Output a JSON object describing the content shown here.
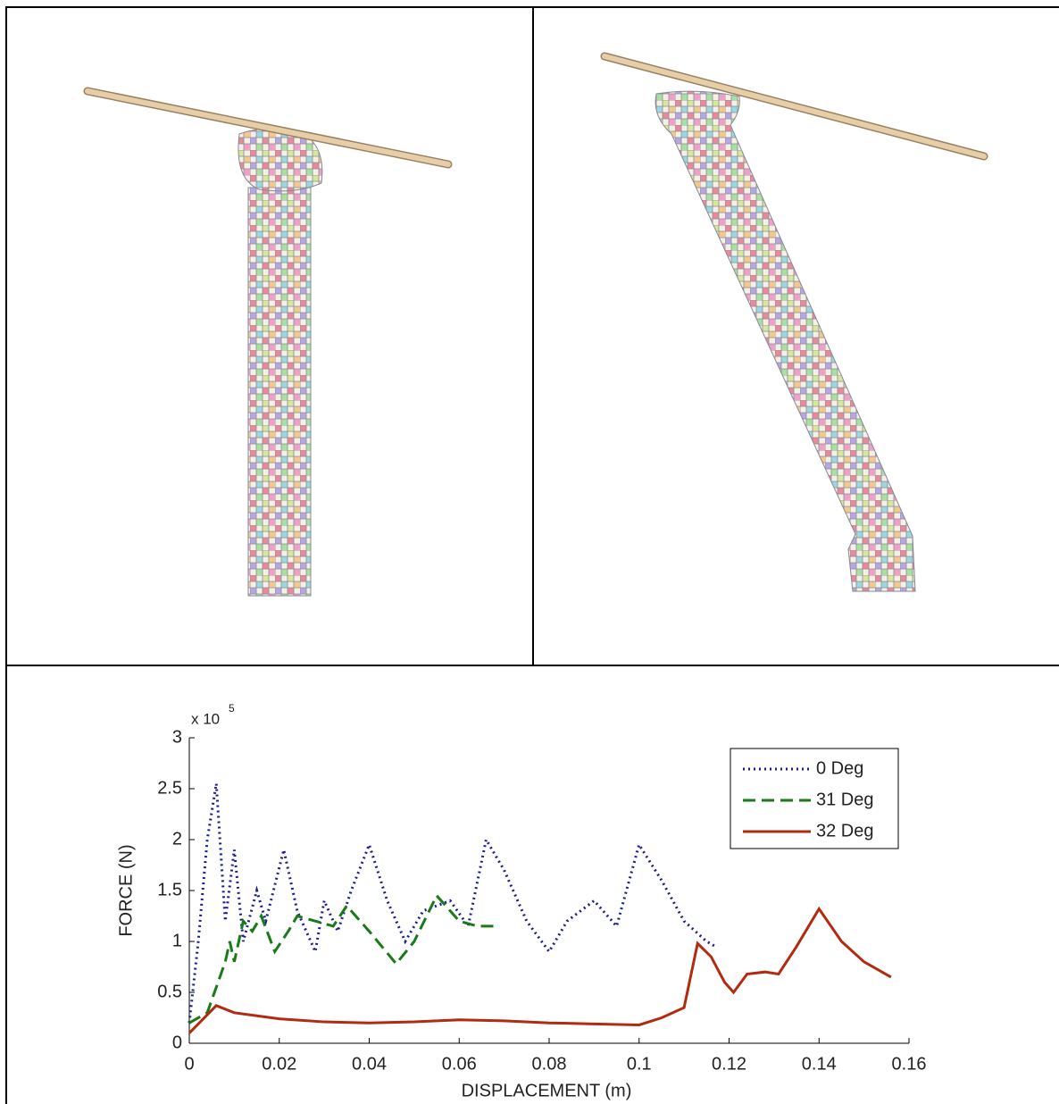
{
  "chart_data": {
    "type": "line",
    "xlabel": "DISPLACEMENT (m)",
    "ylabel": "FORCE (N)",
    "y_multiplier": {
      "base": "x 10",
      "exponent": "5"
    },
    "xlim": [
      0,
      0.16
    ],
    "xticks": [
      0,
      0.02,
      0.04,
      0.06,
      0.08,
      0.1,
      0.12,
      0.14,
      0.16
    ],
    "ylim": [
      0,
      3
    ],
    "yticks": [
      0,
      0.5,
      1,
      1.5,
      2,
      2.5,
      3
    ],
    "grid": false,
    "legend": "upper right",
    "series": [
      {
        "name": "0 Deg",
        "color": "#1c1c9a",
        "style": "dotted",
        "x": [
          0,
          0.002,
          0.004,
          0.006,
          0.008,
          0.01,
          0.012,
          0.015,
          0.017,
          0.021,
          0.024,
          0.028,
          0.03,
          0.033,
          0.036,
          0.04,
          0.044,
          0.048,
          0.052,
          0.058,
          0.062,
          0.066,
          0.07,
          0.075,
          0.08,
          0.084,
          0.09,
          0.095,
          0.1,
          0.105,
          0.11,
          0.115,
          0.117
        ],
        "values": [
          0.2,
          1.0,
          2.0,
          2.55,
          1.2,
          1.9,
          1.0,
          1.5,
          1.2,
          1.9,
          1.3,
          0.9,
          1.4,
          1.1,
          1.5,
          1.95,
          1.4,
          1.0,
          1.3,
          1.4,
          1.15,
          2.0,
          1.7,
          1.2,
          0.9,
          1.2,
          1.4,
          1.15,
          1.95,
          1.6,
          1.2,
          1.0,
          0.95
        ]
      },
      {
        "name": "31 Deg",
        "color": "#1a7a1a",
        "style": "dashed",
        "x": [
          0,
          0.004,
          0.008,
          0.009,
          0.01,
          0.012,
          0.014,
          0.016,
          0.019,
          0.022,
          0.024,
          0.028,
          0.032,
          0.035,
          0.04,
          0.046,
          0.05,
          0.055,
          0.06,
          0.064,
          0.068
        ],
        "values": [
          0.2,
          0.3,
          0.8,
          1.0,
          0.8,
          1.2,
          1.1,
          1.25,
          0.9,
          1.1,
          1.25,
          1.2,
          1.15,
          1.35,
          1.1,
          0.78,
          1.0,
          1.45,
          1.2,
          1.15,
          1.15
        ]
      },
      {
        "name": "32 Deg",
        "color": "#b22a10",
        "style": "solid",
        "x": [
          0,
          0.006,
          0.01,
          0.02,
          0.03,
          0.04,
          0.05,
          0.06,
          0.07,
          0.08,
          0.09,
          0.1,
          0.105,
          0.11,
          0.113,
          0.116,
          0.119,
          0.121,
          0.124,
          0.128,
          0.131,
          0.135,
          0.14,
          0.145,
          0.15,
          0.156
        ],
        "values": [
          0.1,
          0.37,
          0.3,
          0.24,
          0.21,
          0.2,
          0.21,
          0.23,
          0.22,
          0.2,
          0.19,
          0.18,
          0.25,
          0.35,
          0.98,
          0.85,
          0.6,
          0.5,
          0.68,
          0.7,
          0.68,
          0.95,
          1.32,
          1.0,
          0.8,
          0.65
        ]
      }
    ]
  }
}
